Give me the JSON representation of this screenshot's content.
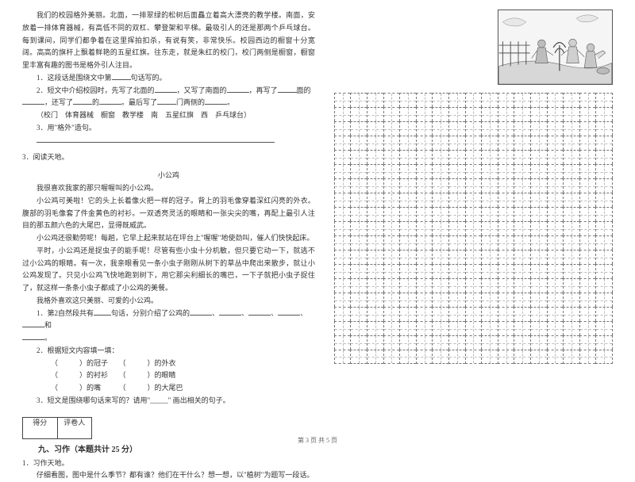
{
  "left": {
    "campus": {
      "p1": "我们的校园格外美丽。北面，一排翠绿的松树后面矗立着高大漂亮的教学楼。南面，安放着一排体育器械，有高低不同的双杠、攀登架和平梯。最吸引人的还是那两个乒乓球台。每到课间，同学们都争着在这里挥拍扣杀，有说有笑，非常快乐。校园西边的橱窗十分宽阔。高高的旗杆上飘着鲜艳的五星红旗。往东走，就是朱红的校门，校门两侧是橱窗，橱窗里丰富有趣的图书是格外引人注目。",
      "q1a": "1．这段话是围绕文中第",
      "q1b": "句话写的。",
      "q2a": "2．短文中介绍校园时，先写了北面的",
      "q2b": "，又写了南面的",
      "q2c": "，再写了",
      "q2d": "面的",
      "q2e": "，还写了",
      "q2f": "的",
      "q2g": "。最后写了",
      "q2h": "门两侧的",
      "q2i": "。",
      "options": "（校门　体育器械　橱窗　教学楼　南　五星红旗　西　乒乓球台）",
      "q3": "3．用\"格外\"造句。"
    },
    "item3": "3．阅读天地。",
    "rooster": {
      "title": "小公鸡",
      "p0": "我很喜欢我家的那只喔喔叫的小公鸡。",
      "p1": "小公鸡可美啦！它的头上长着像火把一样的冠子。背上的羽毛像穿着深红闪亮的外衣。腹部的羽毛像套了件金黄色的衬衫。一双透亮灵活的眼睛和一张尖尖的嘴，再配上最引人注目的那五颜六色的大尾巴，显得既威武。",
      "p2": "小公鸡还很勤劳呢！每趟，它早上起来就站在坪台上\"喔喔\"地使劲叫，催人们快快起床。",
      "p3": "平时，小公鸡还是捉虫子的能手呢！尽管有些小虫十分机敏，但只要它动一下，就逃不过小公鸡的眼睛。有一次，我亲眼看见一条小虫子刚刚从树下的草丛中爬出来散步，就让小公鸡发现了。只见小公鸡飞快地跑到树下，用它那尖利细长的嘴巴，一下子就把小虫子捉住了，就这样一条条小虫子都成了小公鸡的美餐。",
      "p4": "我格外喜欢这只美丽、可爱的小公鸡。",
      "q1a": "1．第2自然段共有",
      "q1b": "句话，分别介绍了公鸡的",
      "q1c": "、",
      "q1d": "、",
      "q1e": "、",
      "q1f": "、",
      "q1g": "和",
      "q1h": "。",
      "q2": "2．根据短文内容填一填：",
      "fill_a1": "（　　　）的冠子",
      "fill_a2": "（　　　）的外衣",
      "fill_b1": "（　　　）的衬衫",
      "fill_b2": "（　　　）的眼睛",
      "fill_c1": "（　　　）的嘴",
      "fill_c2": "（　　　）的大尾巴",
      "q3": "3．短文是围绕哪句话来写的？请用\"_____\" 画出相关的句子。"
    },
    "score_label1": "得分",
    "score_label2": "评卷人",
    "section9": "九、习作（本题共计 25 分）",
    "writing_label": "1．习作天地。",
    "writing_prompt": "仔细看图，图中是什么季节？都有谁？他们在干什么？想一想，以\"植树\"为题写一段话。"
  },
  "footer": "第 3 页 共 5 页",
  "grid": {
    "rows": 19,
    "cols": 17
  }
}
